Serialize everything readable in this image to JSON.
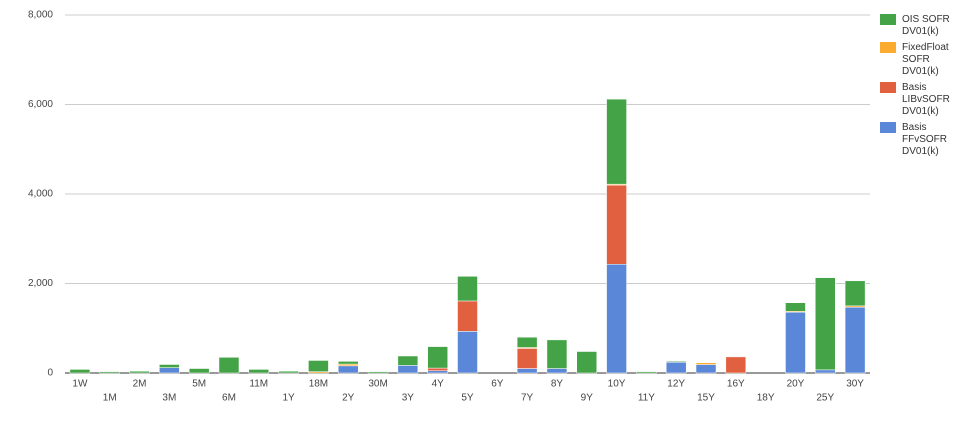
{
  "chart_data": {
    "type": "stacked_bar",
    "categories": [
      "1W",
      "1M",
      "2M",
      "3M",
      "5M",
      "6M",
      "11M",
      "1Y",
      "18M",
      "2Y",
      "30M",
      "3Y",
      "4Y",
      "5Y",
      "6Y",
      "7Y",
      "8Y",
      "9Y",
      "10Y",
      "11Y",
      "12Y",
      "15Y",
      "16Y",
      "18Y",
      "20Y",
      "25Y",
      "30Y"
    ],
    "series": [
      {
        "name": "OIS SOFR DV01(k)",
        "color": "#43a346",
        "values": [
          80,
          30,
          40,
          70,
          100,
          350,
          80,
          40,
          250,
          60,
          30,
          210,
          480,
          550,
          0,
          230,
          640,
          480,
          1900,
          30,
          20,
          0,
          0,
          0,
          190,
          2060,
          560
        ]
      },
      {
        "name": "FixedFloat SOFR DV01(k)",
        "color": "#fbac2e",
        "values": [
          0,
          0,
          0,
          0,
          0,
          0,
          0,
          0,
          30,
          40,
          0,
          0,
          0,
          0,
          0,
          20,
          0,
          0,
          20,
          0,
          0,
          40,
          0,
          0,
          20,
          0,
          30
        ]
      },
      {
        "name": "Basis LIBvSOFR DV01(k)",
        "color": "#e0603f",
        "values": [
          0,
          0,
          0,
          0,
          0,
          0,
          0,
          0,
          0,
          0,
          0,
          0,
          60,
          680,
          0,
          450,
          0,
          0,
          1770,
          0,
          0,
          0,
          360,
          0,
          0,
          0,
          0
        ]
      },
      {
        "name": "Basis FFvSOFR DV01(k)",
        "color": "#5b87d8",
        "values": [
          0,
          0,
          0,
          120,
          0,
          0,
          0,
          0,
          0,
          160,
          0,
          170,
          50,
          930,
          0,
          100,
          100,
          0,
          2430,
          0,
          240,
          190,
          0,
          0,
          1360,
          70,
          1470
        ]
      }
    ],
    "ylim": [
      0,
      8000
    ],
    "yticks": [
      0,
      {
        "value": 2000,
        "label": "2,000"
      },
      {
        "value": 4000,
        "label": "4,000"
      },
      {
        "value": 6000,
        "label": "6,000"
      },
      {
        "value": 8000,
        "label": "8,000"
      }
    ],
    "grid": true,
    "legend": "right"
  }
}
